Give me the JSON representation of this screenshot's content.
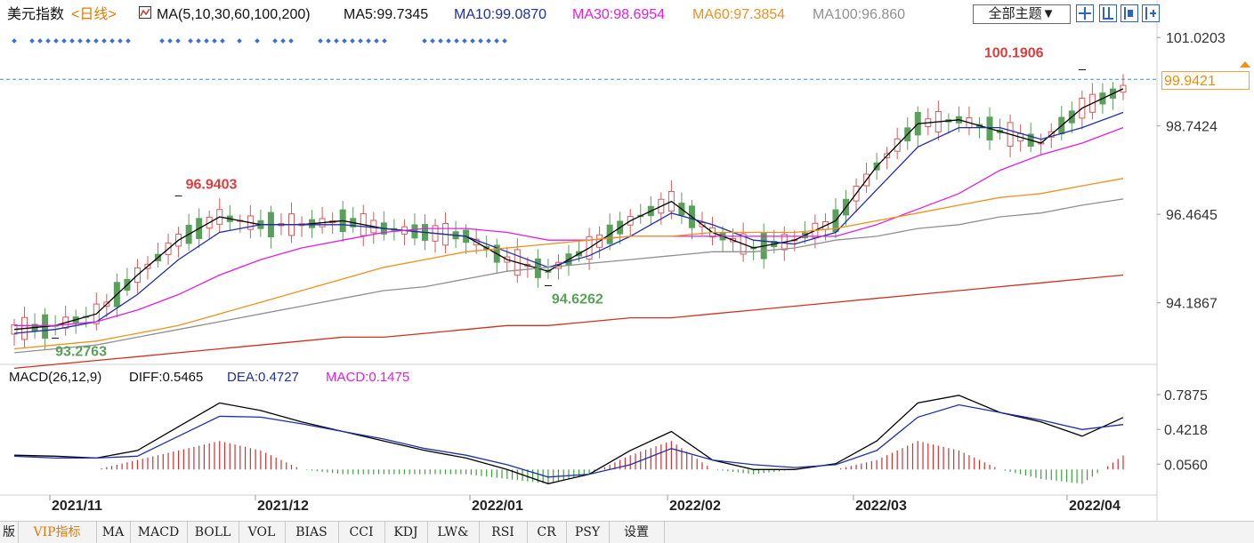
{
  "header": {
    "symbol": "美元指数",
    "period": "<日线>",
    "ma_label": "MA(5,10,30,60,100,200)",
    "ma5": "MA5:99.7345",
    "ma10": "MA10:99.0870",
    "ma30": "MA30:98.6954",
    "ma60": "MA60:97.3854",
    "ma100": "MA100:96.860",
    "theme_button": "全部主题▼"
  },
  "colors": {
    "up": "#d85a5a",
    "down": "#5aa05a",
    "ma5": "#000000",
    "ma10": "#1e2fa8",
    "ma30": "#e020e0",
    "ma60": "#f0901e",
    "ma100": "#909090",
    "ma200": "#d03020",
    "diff": "#000000",
    "dea": "#1e2fa8",
    "grid": "#e6e6e6",
    "last_price_line": "#3a8ee6"
  },
  "price_axis": {
    "ticks": [
      "101.0203",
      "98.7424",
      "96.4645",
      "94.1867"
    ],
    "last_price": "99.9421"
  },
  "annotations": {
    "high1": "96.9403",
    "low1": "93.2763",
    "low2": "94.6262",
    "high2": "100.1906"
  },
  "macd": {
    "label": "MACD(26,12,9)",
    "diff": "DIFF:0.5465",
    "dea": "DEA:0.4727",
    "macd": "MACD:0.1475",
    "ticks": [
      "0.7875",
      "0.4218",
      "0.0560"
    ]
  },
  "x_axis": {
    "labels": [
      "2021/11",
      "2021/12",
      "2022/01",
      "2022/02",
      "2022/03",
      "2022/04"
    ]
  },
  "tabs": [
    {
      "label": "版",
      "active": false
    },
    {
      "label": "VIP指标",
      "active": true
    },
    {
      "label": "MA",
      "active": false
    },
    {
      "label": "MACD",
      "active": false
    },
    {
      "label": "BOLL",
      "active": false
    },
    {
      "label": "VOL",
      "active": false
    },
    {
      "label": "BIAS",
      "active": false
    },
    {
      "label": "CCI",
      "active": false
    },
    {
      "label": "KDJ",
      "active": false
    },
    {
      "label": "LW&",
      "active": false
    },
    {
      "label": "RSI",
      "active": false
    },
    {
      "label": "CR",
      "active": false
    },
    {
      "label": "PSY",
      "active": false
    },
    {
      "label": "设置",
      "active": false
    }
  ],
  "chart_data": {
    "type": "line",
    "title": "美元指数 <日线>",
    "xlabel": "",
    "ylabel": "",
    "ylim": [
      92.6,
      101.3
    ],
    "x": [
      "2021/10/28",
      "2021/11/1",
      "2021/11/5",
      "2021/11/11",
      "2021/11/17",
      "2021/11/24",
      "2021/12/1",
      "2021/12/8",
      "2021/12/15",
      "2021/12/22",
      "2021/12/29",
      "2022/01/5",
      "2022/01/12",
      "2022/01/14",
      "2022/01/19",
      "2022/01/26",
      "2022/01/28",
      "2022/02/2",
      "2022/02/9",
      "2022/02/16",
      "2022/02/23",
      "2022/03/1",
      "2022/03/7",
      "2022/03/14",
      "2022/03/21",
      "2022/03/28",
      "2022/04/1",
      "2022/04/6"
    ],
    "x_tick_labels": [
      "2021/11",
      "2021/12",
      "2022/01",
      "2022/02",
      "2022/03",
      "2022/04"
    ],
    "series": [
      {
        "name": "MA5",
        "values": [
          93.5,
          93.6,
          93.9,
          94.9,
          95.8,
          96.4,
          96.2,
          96.2,
          96.3,
          96.1,
          96.0,
          95.9,
          95.3,
          95.0,
          95.6,
          96.3,
          96.8,
          96.0,
          95.6,
          95.8,
          96.3,
          97.7,
          98.8,
          98.9,
          98.6,
          98.3,
          99.2,
          99.7
        ]
      },
      {
        "name": "MA10",
        "values": [
          93.4,
          93.5,
          93.7,
          94.4,
          95.3,
          96.0,
          96.2,
          96.2,
          96.2,
          96.1,
          96.0,
          95.9,
          95.5,
          95.1,
          95.4,
          95.9,
          96.5,
          96.2,
          95.8,
          95.7,
          96.0,
          97.1,
          98.2,
          98.7,
          98.7,
          98.4,
          98.7,
          99.09
        ]
      },
      {
        "name": "MA30",
        "values": [
          93.6,
          93.6,
          93.7,
          94.0,
          94.4,
          94.9,
          95.3,
          95.6,
          95.8,
          96.0,
          96.1,
          96.1,
          96.0,
          95.8,
          95.8,
          95.9,
          95.9,
          95.9,
          95.9,
          95.9,
          95.9,
          96.2,
          96.6,
          97.0,
          97.6,
          98.0,
          98.3,
          98.7
        ]
      },
      {
        "name": "MA60",
        "values": [
          93.0,
          93.1,
          93.2,
          93.4,
          93.6,
          93.9,
          94.2,
          94.5,
          94.8,
          95.1,
          95.3,
          95.5,
          95.6,
          95.7,
          95.8,
          95.9,
          95.9,
          96.0,
          96.0,
          96.0,
          96.1,
          96.3,
          96.5,
          96.7,
          96.9,
          97.0,
          97.2,
          97.39
        ]
      },
      {
        "name": "MA100",
        "values": [
          92.9,
          93.0,
          93.1,
          93.3,
          93.5,
          93.7,
          93.9,
          94.1,
          94.3,
          94.5,
          94.6,
          94.8,
          95.0,
          95.1,
          95.2,
          95.3,
          95.4,
          95.5,
          95.5,
          95.6,
          95.8,
          95.9,
          96.1,
          96.2,
          96.4,
          96.5,
          96.7,
          96.86
        ]
      },
      {
        "name": "MA200",
        "values": [
          92.5,
          92.6,
          92.7,
          92.8,
          92.9,
          93.0,
          93.1,
          93.2,
          93.3,
          93.3,
          93.4,
          93.5,
          93.6,
          93.6,
          93.7,
          93.8,
          93.8,
          93.9,
          94.0,
          94.1,
          94.2,
          94.3,
          94.4,
          94.5,
          94.6,
          94.7,
          94.8,
          94.9
        ]
      }
    ],
    "macd_series": [
      {
        "name": "DIFF",
        "values": [
          0.15,
          0.14,
          0.12,
          0.2,
          0.45,
          0.7,
          0.62,
          0.5,
          0.4,
          0.3,
          0.2,
          0.12,
          0.0,
          -0.15,
          -0.05,
          0.2,
          0.4,
          0.1,
          0.0,
          0.0,
          0.06,
          0.3,
          0.7,
          0.78,
          0.6,
          0.5,
          0.35,
          0.5465
        ]
      },
      {
        "name": "DEA",
        "values": [
          0.14,
          0.12,
          0.12,
          0.14,
          0.35,
          0.56,
          0.55,
          0.48,
          0.4,
          0.32,
          0.22,
          0.15,
          0.05,
          -0.08,
          -0.05,
          0.05,
          0.22,
          0.1,
          0.05,
          0.02,
          0.05,
          0.2,
          0.55,
          0.68,
          0.6,
          0.52,
          0.42,
          0.4727
        ]
      },
      {
        "name": "MACD",
        "values": [
          0.0,
          0.0,
          0.0,
          0.1,
          0.2,
          0.3,
          0.2,
          0.0,
          -0.05,
          -0.05,
          -0.05,
          -0.05,
          -0.1,
          -0.15,
          -0.05,
          0.15,
          0.3,
          0.0,
          -0.05,
          0.0,
          0.0,
          0.1,
          0.3,
          0.2,
          0.0,
          -0.1,
          -0.15,
          0.1475
        ]
      }
    ],
    "macd_ylim": [
      -0.25,
      0.9
    ]
  }
}
